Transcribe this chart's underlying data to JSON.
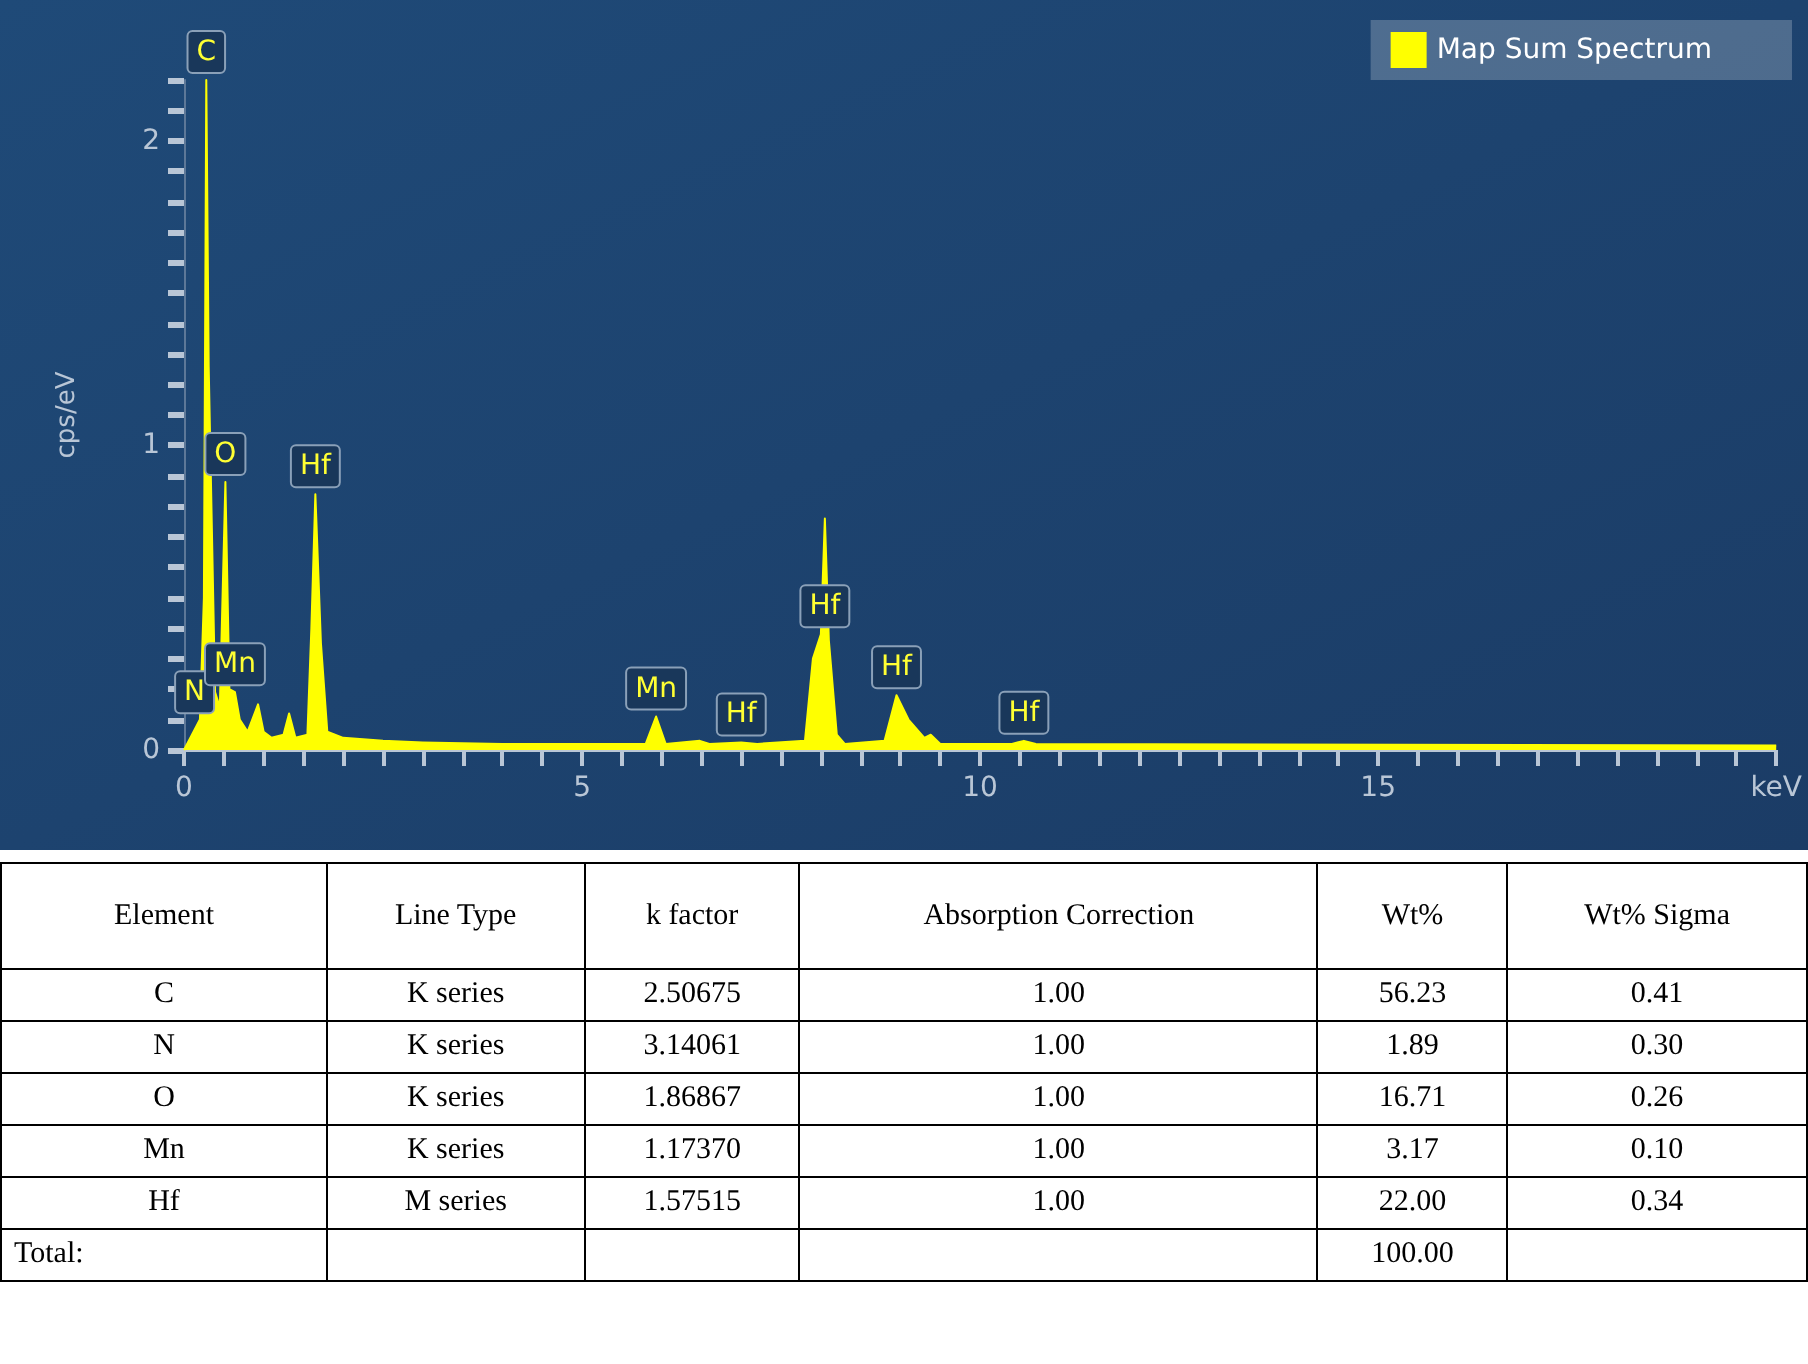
{
  "chart_data": [
    {
      "type": "area",
      "ylabel": "cps/eV",
      "legend": "top right",
      "grid": false,
      "xlim": [
        0,
        20
      ],
      "xticks": [
        0,
        {
          "value": 0.5,
          "label": null
        },
        {
          "value": 1,
          "label": null
        },
        {
          "value": 1.5,
          "label": null
        },
        {
          "value": 2,
          "label": null
        },
        {
          "value": 2.5,
          "label": null
        },
        {
          "value": 3,
          "label": null
        },
        {
          "value": 3.5,
          "label": null
        },
        {
          "value": 4,
          "label": null
        },
        {
          "value": 4.5,
          "label": null
        },
        5,
        {
          "value": 5.5,
          "label": null
        },
        {
          "value": 6,
          "label": null
        },
        {
          "value": 6.5,
          "label": null
        },
        {
          "value": 7,
          "label": null
        },
        {
          "value": 7.5,
          "label": null
        },
        {
          "value": 8,
          "label": null
        },
        {
          "value": 8.5,
          "label": null
        },
        {
          "value": 9,
          "label": null
        },
        {
          "value": 9.5,
          "label": null
        },
        10,
        {
          "value": 10.5,
          "label": null
        },
        {
          "value": 11,
          "label": null
        },
        {
          "value": 11.5,
          "label": null
        },
        {
          "value": 12,
          "label": null
        },
        {
          "value": 12.5,
          "label": null
        },
        {
          "value": 13,
          "label": null
        },
        {
          "value": 13.5,
          "label": null
        },
        {
          "value": 14,
          "label": null
        },
        {
          "value": 14.5,
          "label": null
        },
        15,
        {
          "value": 15.5,
          "label": null
        },
        {
          "value": 16,
          "label": null
        },
        {
          "value": 16.5,
          "label": null
        },
        {
          "value": 17,
          "label": null
        },
        {
          "value": 17.5,
          "label": null
        },
        {
          "value": 18,
          "label": null
        },
        {
          "value": 18.5,
          "label": null
        },
        {
          "value": 19,
          "label": null
        },
        {
          "value": 19.5,
          "label": null
        },
        {
          "value": 20,
          "label": "keV"
        }
      ],
      "ylim": [
        0,
        2.2
      ],
      "yticks": [
        0,
        {
          "value": 0.1,
          "label": null
        },
        {
          "value": 0.2,
          "label": null
        },
        {
          "value": 0.3,
          "label": null
        },
        {
          "value": 0.4,
          "label": null
        },
        {
          "value": 0.5,
          "label": null
        },
        {
          "value": 0.6,
          "label": null
        },
        {
          "value": 0.7,
          "label": null
        },
        {
          "value": 0.8,
          "label": null
        },
        {
          "value": 0.9,
          "label": null
        },
        1,
        {
          "value": 1.1,
          "label": null
        },
        {
          "value": 1.2,
          "label": null
        },
        {
          "value": 1.3,
          "label": null
        },
        {
          "value": 1.4,
          "label": null
        },
        {
          "value": 1.5,
          "label": null
        },
        {
          "value": 1.6,
          "label": null
        },
        {
          "value": 1.7,
          "label": null
        },
        {
          "value": 1.8,
          "label": null
        },
        {
          "value": 1.9,
          "label": null
        },
        2,
        {
          "value": 2.1,
          "label": null
        },
        {
          "value": 2.2,
          "label": null
        }
      ],
      "series": [
        {
          "name": "Map Sum Spectrum",
          "color": "#ffff00",
          "x": [
            0,
            0.1,
            0.2,
            0.25,
            0.28,
            0.31,
            0.39,
            0.45,
            0.52,
            0.57,
            0.64,
            0.7,
            0.8,
            0.93,
            1.0,
            1.1,
            1.25,
            1.32,
            1.4,
            1.55,
            1.6,
            1.65,
            1.72,
            1.8,
            2.0,
            2.5,
            3.0,
            4.0,
            5.0,
            5.8,
            5.93,
            6.05,
            6.48,
            6.6,
            7.0,
            7.2,
            7.8,
            7.9,
            8.0,
            8.05,
            8.1,
            8.2,
            8.3,
            8.8,
            8.95,
            9.1,
            9.3,
            9.38,
            9.5,
            10.4,
            10.55,
            10.7,
            20
          ],
          "values": [
            0,
            0.05,
            0.1,
            0.5,
            2.2,
            1.26,
            0.19,
            0.14,
            0.88,
            0.2,
            0.19,
            0.1,
            0.06,
            0.15,
            0.06,
            0.04,
            0.05,
            0.12,
            0.04,
            0.05,
            0.4,
            0.84,
            0.35,
            0.06,
            0.04,
            0.03,
            0.025,
            0.02,
            0.02,
            0.02,
            0.11,
            0.02,
            0.03,
            0.02,
            0.025,
            0.02,
            0.03,
            0.3,
            0.38,
            0.76,
            0.36,
            0.05,
            0.02,
            0.03,
            0.18,
            0.1,
            0.04,
            0.05,
            0.02,
            0.02,
            0.03,
            0.02,
            0.015
          ]
        }
      ],
      "annotations": [
        {
          "text": "C",
          "x": 0.28,
          "y": 2.2
        },
        {
          "text": "N",
          "x": 0.39,
          "y": 0.19
        },
        {
          "text": "O",
          "x": 0.52,
          "y": 0.88
        },
        {
          "text": "Mn",
          "x": 0.64,
          "y": 0.19
        },
        {
          "text": "Hf",
          "x": 1.65,
          "y": 0.84
        },
        {
          "text": "Mn",
          "x": 5.93,
          "y": 0.11
        },
        {
          "text": "Hf",
          "x": 7.0,
          "y": 0.025
        },
        {
          "text": "Hf",
          "x": 8.05,
          "y": 0.38
        },
        {
          "text": "Hf",
          "x": 8.95,
          "y": 0.18
        },
        {
          "text": "Hf",
          "x": 10.55,
          "y": 0.03
        }
      ]
    },
    {
      "type": "other",
      "categories": [
        "Element",
        "Line Type",
        "k factor",
        "Absorption Correction",
        "Wt%",
        "Wt% Sigma"
      ],
      "cell_labels": [
        [
          "C",
          "K series",
          "2.50675",
          "1.00",
          "56.23",
          "0.41"
        ],
        [
          "N",
          "K series",
          "3.14061",
          "1.00",
          "1.89",
          "0.30"
        ],
        [
          "O",
          "K series",
          "1.86867",
          "1.00",
          "16.71",
          "0.26"
        ],
        [
          "Mn",
          "K series",
          "1.17370",
          "1.00",
          "3.17",
          "0.10"
        ],
        [
          "Hf",
          "M series",
          "1.57515",
          "1.00",
          "22.00",
          "0.34"
        ],
        [
          "Total:",
          null,
          null,
          null,
          "100.00",
          null
        ]
      ]
    }
  ]
}
